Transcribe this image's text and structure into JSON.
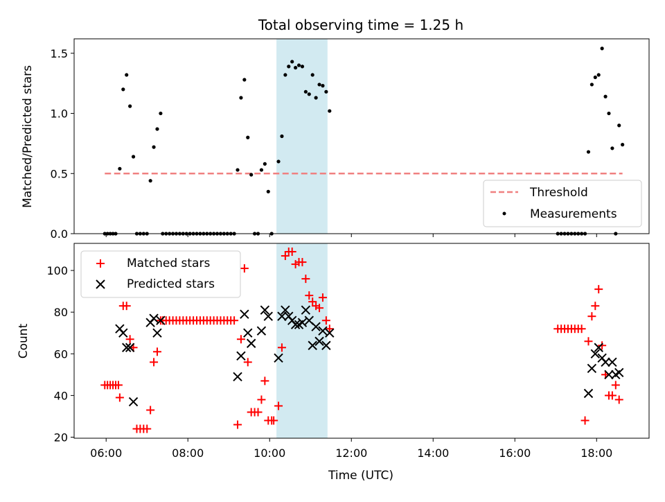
{
  "title": "Total observing time = 1.25 h",
  "chart_data": [
    {
      "type": "scatter",
      "panel": "top",
      "title": "Total observing time = 1.25 h",
      "ylabel": "Matched/Predicted stars",
      "xlabel": "",
      "ylim": [
        0,
        1.62
      ],
      "xlim": [
        "05:13",
        "19:17"
      ],
      "yticks": [
        "0.0",
        "0.5",
        "1.0",
        "1.5"
      ],
      "legend_placement": "lower-right",
      "highlight_band": {
        "start": "10:10",
        "end": "11:25",
        "color": "#add8e6"
      },
      "threshold": {
        "name": "Threshold",
        "value": 0.5,
        "x_start": "05:58",
        "x_end": "18:38",
        "color": "#f08080",
        "style": "dashed"
      },
      "measurements": {
        "name": "Measurements",
        "color": "#000000",
        "points": [
          [
            "05:58",
            0
          ],
          [
            "06:02",
            0
          ],
          [
            "06:06",
            0
          ],
          [
            "06:10",
            0
          ],
          [
            "06:14",
            0
          ],
          [
            "06:20",
            0.54
          ],
          [
            "06:25",
            1.2
          ],
          [
            "06:30",
            1.32
          ],
          [
            "06:35",
            1.06
          ],
          [
            "06:40",
            0.64
          ],
          [
            "06:45",
            0
          ],
          [
            "06:50",
            0
          ],
          [
            "06:55",
            0
          ],
          [
            "07:00",
            0
          ],
          [
            "07:05",
            0.44
          ],
          [
            "07:10",
            0.72
          ],
          [
            "07:15",
            0.87
          ],
          [
            "07:20",
            1.0
          ],
          [
            "07:23",
            0
          ],
          [
            "07:28",
            0
          ],
          [
            "07:33",
            0
          ],
          [
            "07:38",
            0
          ],
          [
            "07:43",
            0
          ],
          [
            "07:48",
            0
          ],
          [
            "07:53",
            0
          ],
          [
            "07:58",
            0
          ],
          [
            "08:03",
            0
          ],
          [
            "08:08",
            0
          ],
          [
            "08:13",
            0
          ],
          [
            "08:18",
            0
          ],
          [
            "08:23",
            0
          ],
          [
            "08:28",
            0
          ],
          [
            "08:33",
            0
          ],
          [
            "08:38",
            0
          ],
          [
            "08:43",
            0
          ],
          [
            "08:48",
            0
          ],
          [
            "08:53",
            0
          ],
          [
            "08:58",
            0
          ],
          [
            "09:03",
            0
          ],
          [
            "09:08",
            0
          ],
          [
            "09:13",
            0.53
          ],
          [
            "09:18",
            1.13
          ],
          [
            "09:23",
            1.28
          ],
          [
            "09:28",
            0.8
          ],
          [
            "09:33",
            0.49
          ],
          [
            "09:38",
            0
          ],
          [
            "09:43",
            0
          ],
          [
            "09:48",
            0.53
          ],
          [
            "09:53",
            0.58
          ],
          [
            "09:58",
            0.35
          ],
          [
            "10:03",
            0
          ],
          [
            "10:13",
            0.6
          ],
          [
            "10:18",
            0.81
          ],
          [
            "10:23",
            1.32
          ],
          [
            "10:28",
            1.39
          ],
          [
            "10:33",
            1.43
          ],
          [
            "10:38",
            1.38
          ],
          [
            "10:43",
            1.4
          ],
          [
            "10:48",
            1.39
          ],
          [
            "10:53",
            1.18
          ],
          [
            "10:58",
            1.16
          ],
          [
            "11:03",
            1.32
          ],
          [
            "11:08",
            1.13
          ],
          [
            "11:13",
            1.24
          ],
          [
            "11:18",
            1.23
          ],
          [
            "11:23",
            1.18
          ],
          [
            "11:28",
            1.02
          ],
          [
            "17:03",
            0
          ],
          [
            "17:08",
            0
          ],
          [
            "17:13",
            0
          ],
          [
            "17:18",
            0
          ],
          [
            "17:23",
            0
          ],
          [
            "17:28",
            0
          ],
          [
            "17:33",
            0
          ],
          [
            "17:38",
            0
          ],
          [
            "17:43",
            0
          ],
          [
            "17:48",
            0.68
          ],
          [
            "17:53",
            1.24
          ],
          [
            "17:58",
            1.3
          ],
          [
            "18:03",
            1.32
          ],
          [
            "18:08",
            1.54
          ],
          [
            "18:13",
            1.14
          ],
          [
            "18:18",
            1.0
          ],
          [
            "18:23",
            0.71
          ],
          [
            "18:28",
            0
          ],
          [
            "18:33",
            0.9
          ],
          [
            "18:38",
            0.74
          ]
        ]
      }
    },
    {
      "type": "scatter",
      "panel": "bottom",
      "xlabel": "Time (UTC)",
      "ylabel": "Count",
      "ylim": [
        19.5,
        113
      ],
      "xlim": [
        "05:13",
        "19:17"
      ],
      "xticks": [
        "06:00",
        "08:00",
        "10:00",
        "12:00",
        "14:00",
        "16:00",
        "18:00"
      ],
      "yticks": [
        "20",
        "40",
        "60",
        "80",
        "100"
      ],
      "legend_placement": "upper-left",
      "highlight_band": {
        "start": "10:10",
        "end": "11:25",
        "color": "#add8e6"
      },
      "series": [
        {
          "name": "Matched stars",
          "marker": "plus",
          "color": "#ff0000",
          "points": [
            [
              "05:58",
              45
            ],
            [
              "06:02",
              45
            ],
            [
              "06:06",
              45
            ],
            [
              "06:10",
              45
            ],
            [
              "06:14",
              45
            ],
            [
              "06:18",
              45
            ],
            [
              "06:20",
              39
            ],
            [
              "06:25",
              83
            ],
            [
              "06:30",
              83
            ],
            [
              "06:35",
              67
            ],
            [
              "06:40",
              63
            ],
            [
              "06:45",
              24
            ],
            [
              "06:50",
              24
            ],
            [
              "06:55",
              24
            ],
            [
              "07:00",
              24
            ],
            [
              "07:05",
              33
            ],
            [
              "07:10",
              56
            ],
            [
              "07:15",
              61
            ],
            [
              "07:20",
              76
            ],
            [
              "07:23",
              76
            ],
            [
              "07:28",
              76
            ],
            [
              "07:33",
              76
            ],
            [
              "07:38",
              76
            ],
            [
              "07:43",
              76
            ],
            [
              "07:48",
              76
            ],
            [
              "07:53",
              76
            ],
            [
              "07:58",
              76
            ],
            [
              "08:03",
              76
            ],
            [
              "08:08",
              76
            ],
            [
              "08:13",
              76
            ],
            [
              "08:18",
              76
            ],
            [
              "08:23",
              76
            ],
            [
              "08:28",
              76
            ],
            [
              "08:33",
              76
            ],
            [
              "08:38",
              76
            ],
            [
              "08:43",
              76
            ],
            [
              "08:48",
              76
            ],
            [
              "08:53",
              76
            ],
            [
              "08:58",
              76
            ],
            [
              "09:03",
              76
            ],
            [
              "09:08",
              76
            ],
            [
              "09:13",
              26
            ],
            [
              "09:18",
              67
            ],
            [
              "09:23",
              101
            ],
            [
              "09:28",
              56
            ],
            [
              "09:33",
              32
            ],
            [
              "09:38",
              32
            ],
            [
              "09:43",
              32
            ],
            [
              "09:48",
              38
            ],
            [
              "09:53",
              47
            ],
            [
              "09:58",
              28
            ],
            [
              "10:03",
              28
            ],
            [
              "10:06",
              28
            ],
            [
              "10:13",
              35
            ],
            [
              "10:18",
              63
            ],
            [
              "10:23",
              107
            ],
            [
              "10:28",
              109
            ],
            [
              "10:33",
              109
            ],
            [
              "10:38",
              103
            ],
            [
              "10:43",
              104
            ],
            [
              "10:48",
              104
            ],
            [
              "10:53",
              96
            ],
            [
              "10:58",
              88
            ],
            [
              "11:03",
              85
            ],
            [
              "11:08",
              83
            ],
            [
              "11:13",
              82
            ],
            [
              "11:18",
              87
            ],
            [
              "11:23",
              76
            ],
            [
              "11:28",
              72
            ],
            [
              "17:03",
              72
            ],
            [
              "17:08",
              72
            ],
            [
              "17:13",
              72
            ],
            [
              "17:18",
              72
            ],
            [
              "17:23",
              72
            ],
            [
              "17:28",
              72
            ],
            [
              "17:33",
              72
            ],
            [
              "17:38",
              72
            ],
            [
              "17:43",
              28
            ],
            [
              "17:48",
              66
            ],
            [
              "17:53",
              78
            ],
            [
              "17:58",
              83
            ],
            [
              "18:03",
              91
            ],
            [
              "18:08",
              64
            ],
            [
              "18:13",
              50
            ],
            [
              "18:18",
              40
            ],
            [
              "18:23",
              40
            ],
            [
              "18:28",
              45
            ],
            [
              "18:33",
              38
            ]
          ]
        },
        {
          "name": "Predicted stars",
          "marker": "x",
          "color": "#000000",
          "points": [
            [
              "06:20",
              72
            ],
            [
              "06:25",
              70
            ],
            [
              "06:30",
              63
            ],
            [
              "06:35",
              63
            ],
            [
              "06:40",
              37
            ],
            [
              "07:05",
              75
            ],
            [
              "07:10",
              77
            ],
            [
              "07:15",
              70
            ],
            [
              "07:20",
              76
            ],
            [
              "09:13",
              49
            ],
            [
              "09:18",
              59
            ],
            [
              "09:23",
              79
            ],
            [
              "09:28",
              70
            ],
            [
              "09:33",
              65
            ],
            [
              "09:48",
              71
            ],
            [
              "09:53",
              81
            ],
            [
              "09:58",
              78
            ],
            [
              "10:13",
              58
            ],
            [
              "10:18",
              78
            ],
            [
              "10:23",
              81
            ],
            [
              "10:28",
              78
            ],
            [
              "10:33",
              76
            ],
            [
              "10:38",
              74
            ],
            [
              "10:43",
              74
            ],
            [
              "10:48",
              75
            ],
            [
              "10:53",
              81
            ],
            [
              "10:58",
              76
            ],
            [
              "11:03",
              64
            ],
            [
              "11:08",
              73
            ],
            [
              "11:13",
              66
            ],
            [
              "11:18",
              71
            ],
            [
              "11:23",
              64
            ],
            [
              "11:28",
              70
            ],
            [
              "17:48",
              41
            ],
            [
              "17:53",
              53
            ],
            [
              "17:58",
              60
            ],
            [
              "18:03",
              63
            ],
            [
              "18:08",
              58
            ],
            [
              "18:13",
              56
            ],
            [
              "18:18",
              50
            ],
            [
              "18:23",
              56
            ],
            [
              "18:28",
              50
            ],
            [
              "18:33",
              51
            ]
          ]
        }
      ]
    }
  ]
}
